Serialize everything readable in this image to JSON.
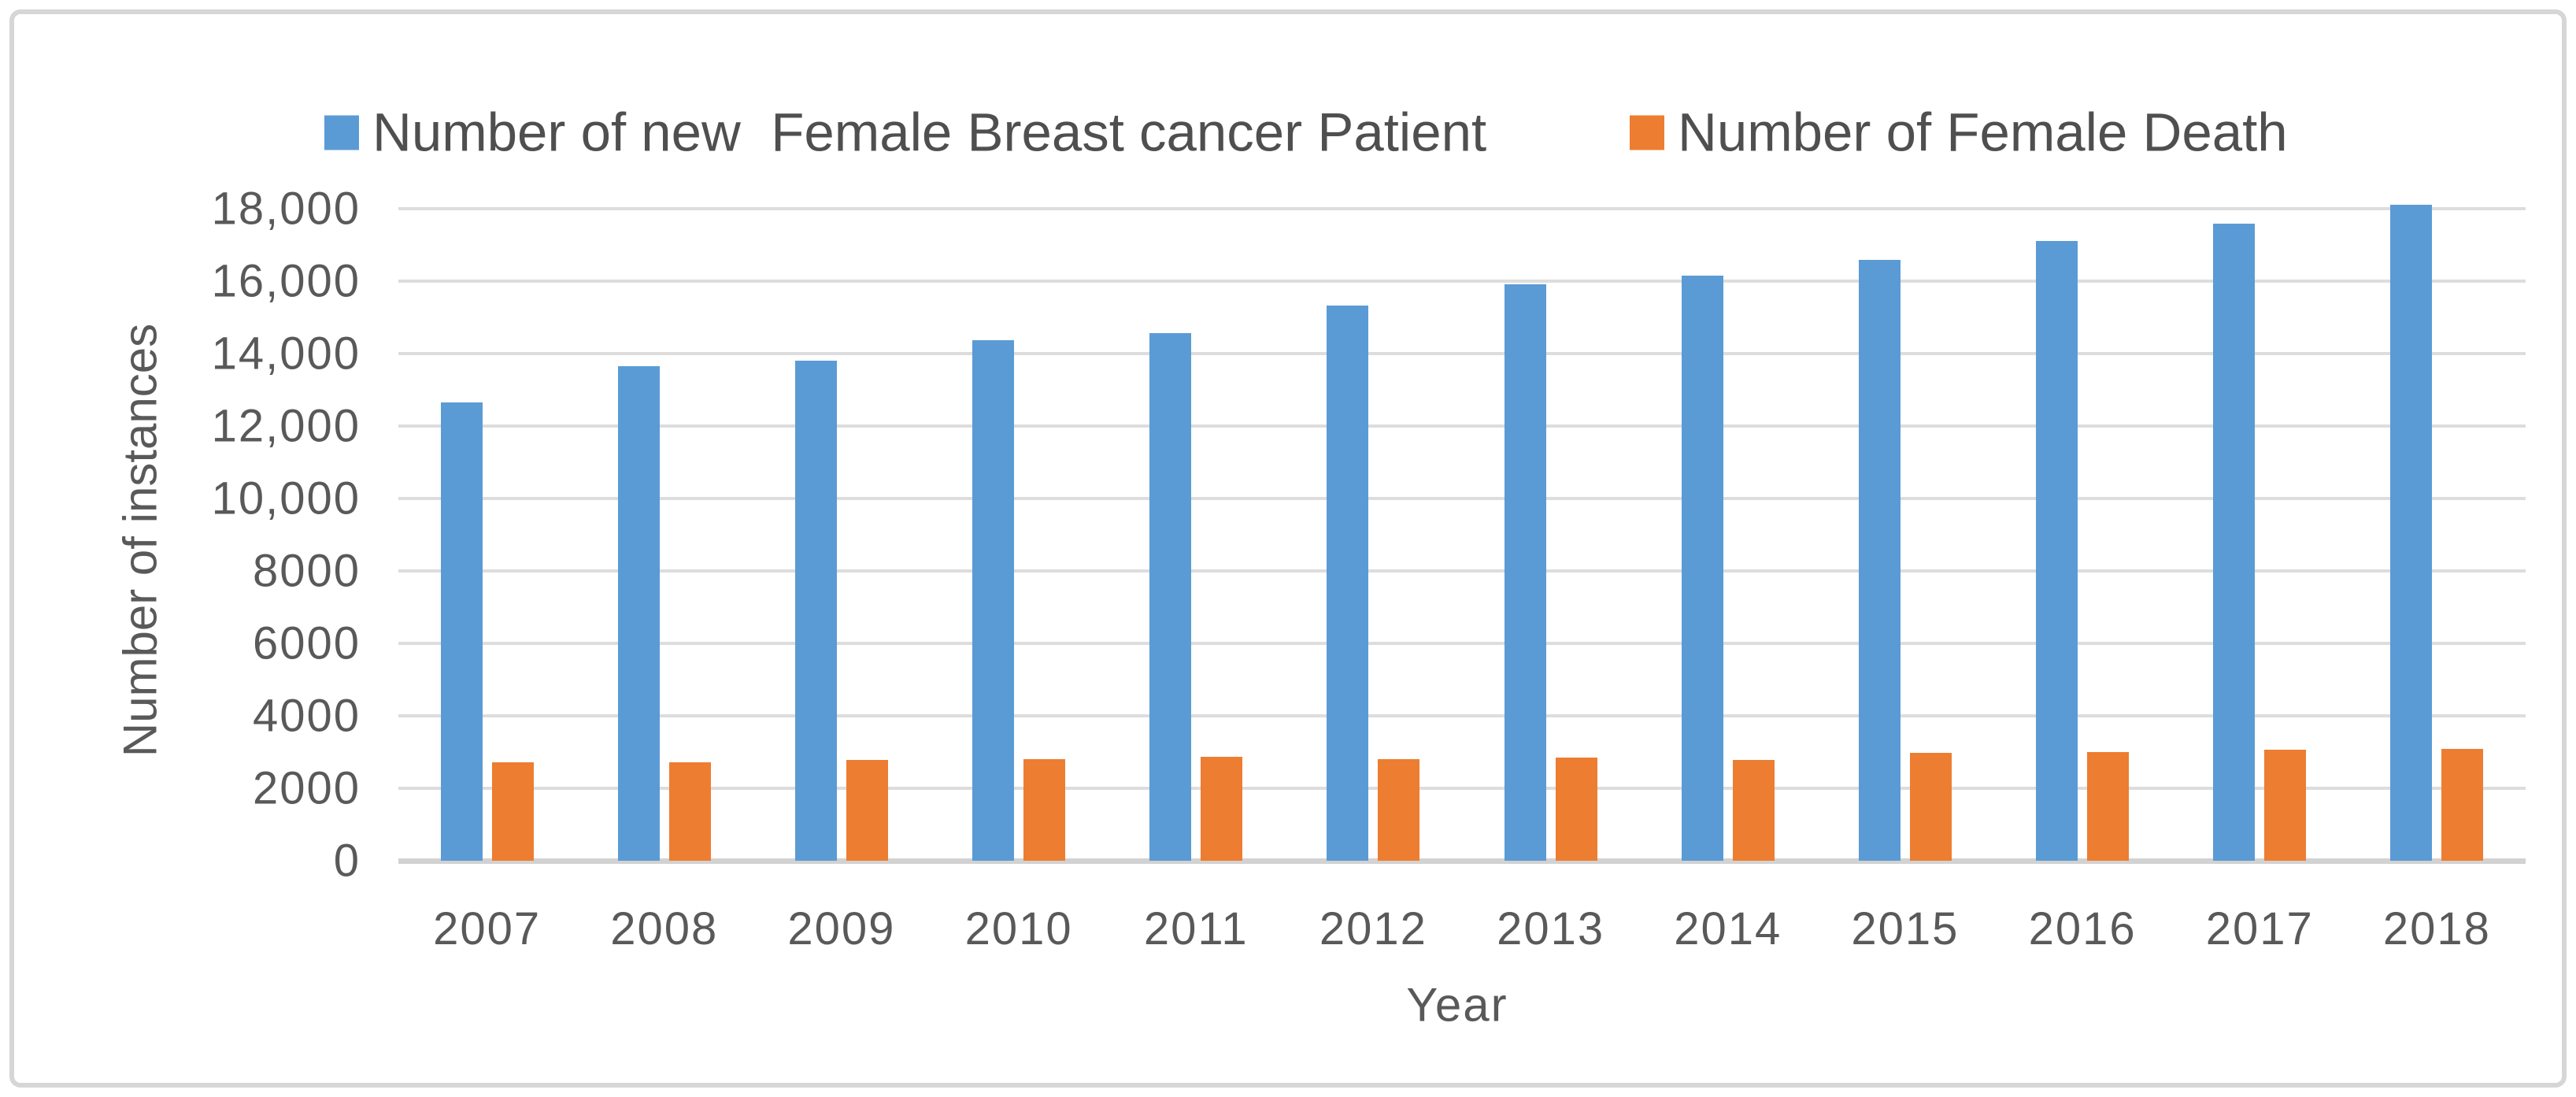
{
  "chart_data": {
    "type": "bar",
    "title": "",
    "categories": [
      "2007",
      "2008",
      "2009",
      "2010",
      "2011",
      "2012",
      "2013",
      "2014",
      "2015",
      "2016",
      "2017",
      "2018"
    ],
    "series": [
      {
        "name": "Number of new  Female Breast cancer Patient",
        "color": "#5B9BD5",
        "values": [
          12650,
          13650,
          13810,
          14370,
          14570,
          15320,
          15920,
          16150,
          16590,
          17100,
          17590,
          18100
        ]
      },
      {
        "name": "Number of Female Death",
        "color": "#ED7D31",
        "values": [
          2720,
          2720,
          2780,
          2810,
          2870,
          2800,
          2850,
          2780,
          2970,
          3010,
          3060,
          3090
        ]
      }
    ],
    "xlabel": "Year",
    "ylabel": "Number of instances",
    "ylim": [
      0,
      18000
    ],
    "ytick_step": 2000,
    "y_tick_labels_top_to_bottom": [
      "18,000",
      "16,000",
      "14,000",
      "12,000",
      "10,000",
      "8000",
      "6000",
      "4000",
      "2000",
      "0"
    ],
    "grid": "horizontal",
    "legend_position": "top-center",
    "colors": {
      "gridline": "#dddddd",
      "axis_line": "#d2d2d2",
      "tick_text": "#595959",
      "legend_text": "#4f4f4f",
      "frame_border": "#d6d6d6"
    }
  }
}
